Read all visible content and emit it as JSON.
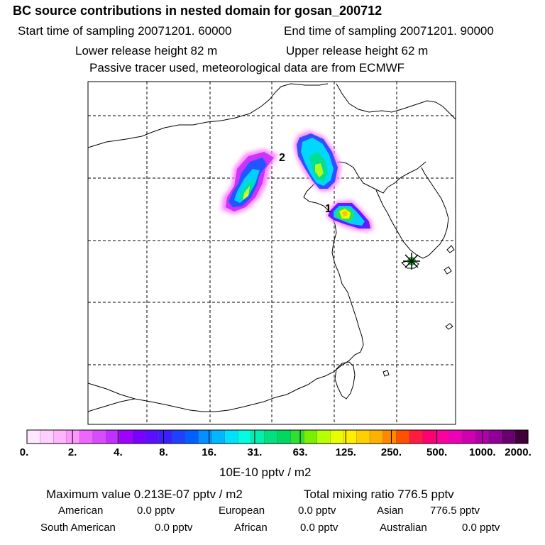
{
  "header": {
    "title": "BC  source contributions in nested domain for gosan_200712",
    "start_time": "Start time of sampling 20071201. 60000",
    "end_time": "End time of sampling 20071201. 90000",
    "lower_release": "Lower release height   82 m",
    "upper_release": "Upper release height   62 m",
    "tracer_note": "Passive tracer used, meteorological data are from ECMWF"
  },
  "map": {
    "label_1": "1",
    "label_2": "2",
    "receptor_marker": "asterisk-icon"
  },
  "colorbar": {
    "colors": [
      "#ffe8ff",
      "#ffd0ff",
      "#ffb4ff",
      "#ff96ff",
      "#ee66ff",
      "#d84cff",
      "#c030ff",
      "#a000ff",
      "#7a00ff",
      "#5a10ff",
      "#3a20ff",
      "#2040ff",
      "#0060ff",
      "#0090ff",
      "#00b8ff",
      "#00e0ff",
      "#00ffe0",
      "#00f0b0",
      "#00e080",
      "#00d860",
      "#30e030",
      "#7af000",
      "#b8ff00",
      "#e8ff00",
      "#ffee00",
      "#ffd000",
      "#ffb000",
      "#ff8800",
      "#ff5000",
      "#ff1c40",
      "#ff0070",
      "#ff00a0",
      "#ee00b8",
      "#d000b0",
      "#b000a8",
      "#900098",
      "#6a0070",
      "#40003a"
    ],
    "ticks": [
      "0.",
      "2.",
      "4.",
      "8.",
      "16.",
      "31.",
      "63.",
      "125.",
      "250.",
      "500.",
      "1000.",
      "2000."
    ],
    "units": "10E-10 pptv / m2"
  },
  "summary": {
    "max_label": "Maximum value  0.213E-07 pptv / m2",
    "total_label": "Total mixing ratio      776.5 pptv",
    "american_label": "American",
    "american_value": "0.0 pptv",
    "european_label": "European",
    "european_value": "0.0 pptv",
    "asian_label": "Asian",
    "asian_value": "776.5 pptv",
    "south_american_label": "South American",
    "south_american_value": "0.0 pptv",
    "african_label": "African",
    "african_value": "0.0 pptv",
    "australian_label": "Australian",
    "australian_value": "0.0 pptv"
  }
}
